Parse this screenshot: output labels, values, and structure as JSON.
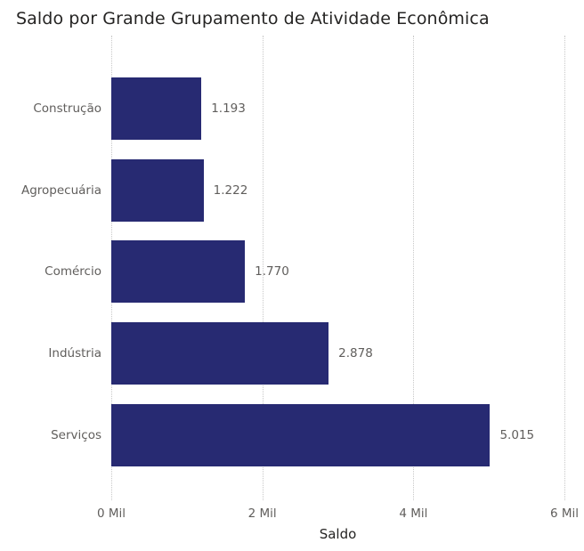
{
  "chart_data": {
    "type": "bar",
    "orientation": "horizontal",
    "title": "Saldo por Grande Grupamento de Atividade Econômica",
    "xlabel": "Saldo",
    "ylabel": "",
    "categories": [
      "Construção",
      "Agropecuária",
      "Comércio",
      "Indústria",
      "Serviços"
    ],
    "values": [
      1193,
      1222,
      1770,
      2878,
      5015
    ],
    "data_labels": [
      "1.193",
      "1.222",
      "1.770",
      "2.878",
      "5.015"
    ],
    "xlim": [
      0,
      6000
    ],
    "xticks": [
      0,
      2000,
      4000,
      6000
    ],
    "xtick_labels": [
      "0 Mil",
      "2 Mil",
      "4 Mil",
      "6 Mil"
    ],
    "grid": "vertical dotted",
    "legend": "none",
    "bar_color": "#272a72"
  }
}
